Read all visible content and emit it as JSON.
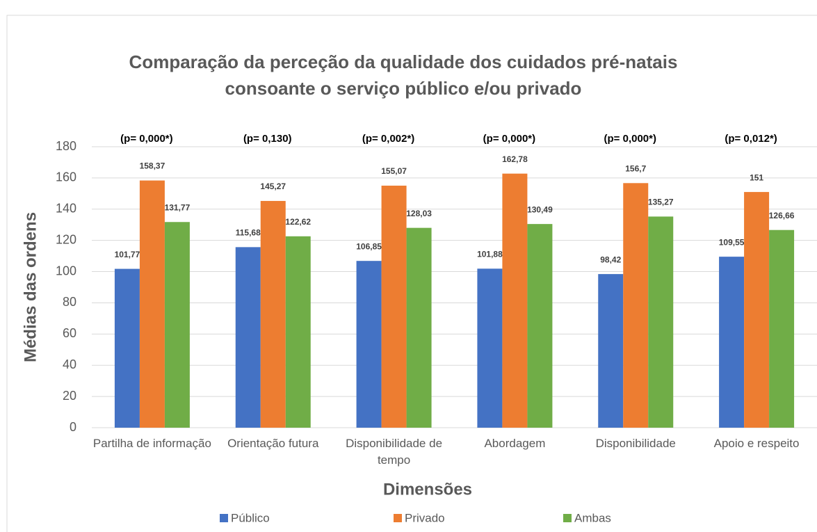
{
  "chart_data": {
    "type": "bar",
    "title": "Comparação da perceção da qualidade dos cuidados pré-natais consoante o serviço público e/ou privado",
    "x_label": "Dimensões",
    "y_label": "Médias das ordens",
    "categories": [
      "Partilha de informação",
      "Orientação futura",
      "Disponibilidade de tempo",
      "Abordagem",
      "Disponibilidade",
      "Apoio e respeito"
    ],
    "annotations": [
      "(p= 0,000*)",
      "(p= 0,130)",
      "(p= 0,002*)",
      "(p= 0,000*)",
      "(p= 0,000*)",
      "(p= 0,012*)"
    ],
    "series": [
      {
        "name": "Público",
        "color": "#4472c4",
        "values": [
          101.77,
          115.68,
          106.85,
          101.88,
          98.42,
          109.55
        ],
        "value_labels": [
          "101,77",
          "115,68",
          "106,85",
          "101,88",
          "98,42",
          "109,55"
        ]
      },
      {
        "name": "Privado",
        "color": "#ed7d31",
        "values": [
          158.37,
          145.27,
          155.07,
          162.78,
          156.7,
          151
        ],
        "value_labels": [
          "158,37",
          "145,27",
          "155,07",
          "162,78",
          "156,7",
          "151"
        ]
      },
      {
        "name": "Ambas",
        "color": "#70ad47",
        "values": [
          131.77,
          122.62,
          128.03,
          130.49,
          135.27,
          126.66
        ],
        "value_labels": [
          "131,77",
          "122,62",
          "128,03",
          "130,49",
          "135,27",
          "126,66"
        ]
      }
    ],
    "ylim": [
      0,
      180
    ],
    "yticks": [
      0,
      20,
      40,
      60,
      80,
      100,
      120,
      140,
      160,
      180
    ],
    "grid": true,
    "legend": "bottom"
  }
}
